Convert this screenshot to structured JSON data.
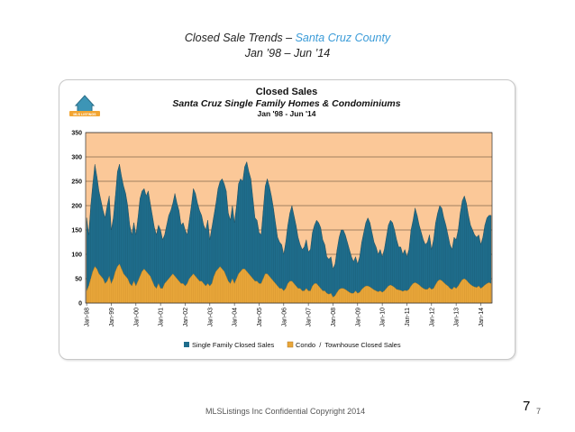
{
  "slide": {
    "title_prefix": "Closed Sale Trends – ",
    "title_accent": "Santa Cruz County",
    "subtitle": "Jan ’98 – Jun ’14",
    "footer": "MLSListings Inc Confidential Copyright 2014",
    "page_number_large": "7",
    "page_number_small": "7",
    "logo_text": "MLS LISTINGS"
  },
  "colors": {
    "plot_background": "#fbc898",
    "single_family": "#1f6d8c",
    "condo": "#e8a63a",
    "condo_outline": "#b3771f"
  },
  "chart_data": {
    "type": "area",
    "title": "Closed Sales",
    "subtitle": "Santa Cruz Single Family Homes & Condominiums",
    "period": "Jan '98 - Jun '14",
    "xlabel": "",
    "ylabel": "",
    "ylim": [
      0,
      350
    ],
    "yticks": [
      0,
      50,
      100,
      150,
      200,
      250,
      300,
      350
    ],
    "grid": true,
    "legend_position": "bottom",
    "x_tick_labels": [
      "Jan-98",
      "Jan-99",
      "Jan-00",
      "Jan-01",
      "Jan-02",
      "Jan-03",
      "Jan-04",
      "Jan-05",
      "Jan-06",
      "Jan-07",
      "Jan-08",
      "Jan-09",
      "Jan-10",
      "Jan-11",
      "Jan-12",
      "Jan-13",
      "Jan-14"
    ],
    "start_month": "Jan-98",
    "months": 198,
    "series": [
      {
        "name": "Single Family Closed Sales",
        "values": [
          175,
          140,
          200,
          245,
          285,
          260,
          230,
          210,
          190,
          175,
          200,
          220,
          150,
          175,
          220,
          270,
          285,
          260,
          240,
          225,
          200,
          160,
          140,
          165,
          140,
          175,
          215,
          230,
          235,
          220,
          230,
          205,
          180,
          155,
          140,
          160,
          150,
          130,
          140,
          160,
          180,
          190,
          205,
          225,
          205,
          190,
          160,
          165,
          150,
          140,
          170,
          200,
          235,
          225,
          205,
          190,
          180,
          160,
          150,
          170,
          130,
          155,
          180,
          205,
          235,
          250,
          255,
          245,
          230,
          185,
          170,
          200,
          165,
          200,
          245,
          255,
          250,
          280,
          290,
          270,
          255,
          215,
          175,
          170,
          145,
          140,
          190,
          240,
          255,
          240,
          220,
          195,
          165,
          135,
          125,
          120,
          100,
          125,
          160,
          185,
          200,
          180,
          160,
          135,
          120,
          110,
          115,
          130,
          105,
          110,
          145,
          160,
          170,
          165,
          155,
          130,
          120,
          95,
          90,
          95,
          70,
          80,
          110,
          135,
          150,
          150,
          140,
          125,
          110,
          95,
          85,
          95,
          80,
          95,
          125,
          145,
          165,
          175,
          165,
          145,
          125,
          115,
          100,
          110,
          95,
          110,
          135,
          160,
          170,
          165,
          150,
          130,
          115,
          115,
          100,
          110,
          95,
          110,
          150,
          170,
          195,
          180,
          160,
          145,
          130,
          120,
          125,
          140,
          110,
          130,
          165,
          185,
          200,
          195,
          175,
          160,
          140,
          120,
          110,
          135,
          130,
          150,
          185,
          210,
          220,
          205,
          180,
          160,
          150,
          140,
          135,
          140,
          120,
          135,
          160,
          175,
          180,
          180
        ]
      },
      {
        "name": "Condo  /  Townhouse Closed Sales",
        "values": [
          25,
          35,
          50,
          65,
          75,
          70,
          60,
          55,
          50,
          40,
          45,
          55,
          40,
          50,
          65,
          75,
          80,
          70,
          60,
          55,
          50,
          40,
          35,
          45,
          35,
          45,
          55,
          65,
          70,
          65,
          60,
          55,
          45,
          35,
          30,
          40,
          30,
          30,
          40,
          45,
          50,
          55,
          60,
          55,
          50,
          45,
          40,
          40,
          35,
          40,
          50,
          55,
          60,
          55,
          50,
          45,
          45,
          40,
          35,
          40,
          35,
          40,
          55,
          65,
          70,
          75,
          70,
          65,
          55,
          45,
          40,
          50,
          40,
          50,
          60,
          65,
          70,
          70,
          65,
          60,
          55,
          50,
          45,
          45,
          40,
          40,
          50,
          60,
          60,
          55,
          50,
          45,
          40,
          35,
          30,
          30,
          25,
          30,
          40,
          45,
          45,
          40,
          35,
          30,
          30,
          25,
          25,
          30,
          25,
          25,
          35,
          40,
          40,
          35,
          30,
          25,
          25,
          20,
          18,
          20,
          12,
          15,
          22,
          28,
          30,
          30,
          28,
          25,
          22,
          20,
          20,
          25,
          20,
          22,
          28,
          32,
          35,
          35,
          33,
          30,
          27,
          25,
          23,
          25,
          22,
          25,
          30,
          35,
          37,
          35,
          32,
          28,
          27,
          26,
          24,
          26,
          25,
          28,
          35,
          40,
          42,
          40,
          37,
          33,
          30,
          28,
          28,
          32,
          28,
          30,
          38,
          45,
          48,
          46,
          42,
          38,
          35,
          30,
          28,
          33,
          30,
          35,
          42,
          48,
          50,
          47,
          42,
          38,
          35,
          33,
          32,
          35,
          30,
          33,
          37,
          40,
          42,
          40
        ]
      }
    ]
  }
}
